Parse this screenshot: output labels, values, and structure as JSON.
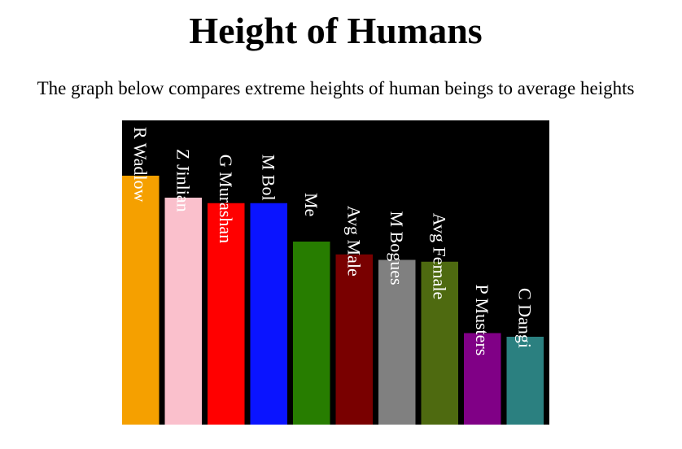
{
  "title": "Height of Humans",
  "subtitle": "The graph below compares extreme heights of human beings to average heights",
  "chart_data": {
    "type": "bar",
    "title": "Height of Humans",
    "subtitle": "The graph below compares extreme heights of human beings to average heights",
    "xlabel": "",
    "ylabel": "",
    "ylim": [
      0,
      272
    ],
    "grid": false,
    "background": "#000000",
    "categories": [
      "R Wadlow",
      "Z Jinlian",
      "G Murashan",
      "M Bol",
      "Me",
      "Avg Male",
      "M Bogues",
      "Avg Female",
      "P Musters",
      "C Dangi"
    ],
    "values": [
      272,
      248,
      242,
      242,
      200,
      186,
      180,
      178,
      100,
      96
    ],
    "colors": [
      "#f5a000",
      "#fac0cc",
      "#ff0000",
      "#0a14ff",
      "#277d00",
      "#790000",
      "#808080",
      "#4e6a10",
      "#800086",
      "#2b8080"
    ],
    "label_color": "#ffffff"
  }
}
